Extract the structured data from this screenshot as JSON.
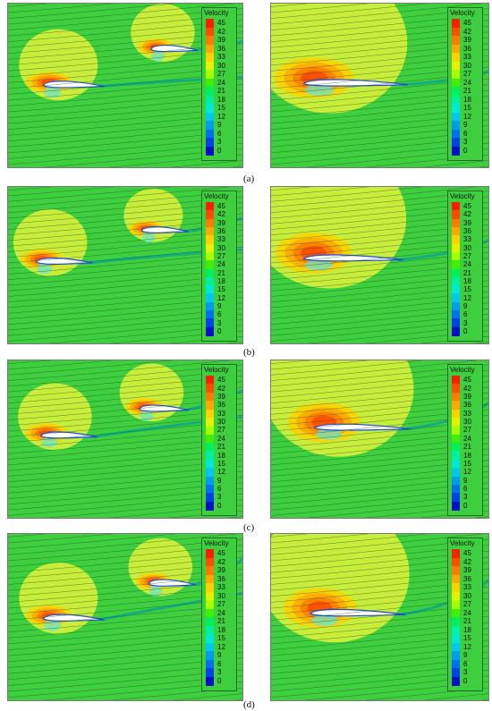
{
  "legend": {
    "title": "Velocity",
    "levels": [
      "45",
      "42",
      "39",
      "36",
      "33",
      "30",
      "27",
      "24",
      "21",
      "18",
      "15",
      "12",
      "9",
      "6",
      "3",
      "0"
    ],
    "colors": [
      "#ff1f00",
      "#ff4a00",
      "#ff7a00",
      "#ffa600",
      "#ffd100",
      "#e8f000",
      "#a8ff00",
      "#40f000",
      "#00f060",
      "#00f0a0",
      "#00e8d8",
      "#00c8f0",
      "#009cf0",
      "#0070f0",
      "#0040e8",
      "#0010c8"
    ]
  },
  "captions": [
    "(a)",
    "(b)",
    "(c)",
    "(d)"
  ],
  "field_colors": {
    "background": "#3ecf3e",
    "bubble": "#d7f03a",
    "wake": "#6ce6c8",
    "streamline": "#1b4d1b"
  }
}
